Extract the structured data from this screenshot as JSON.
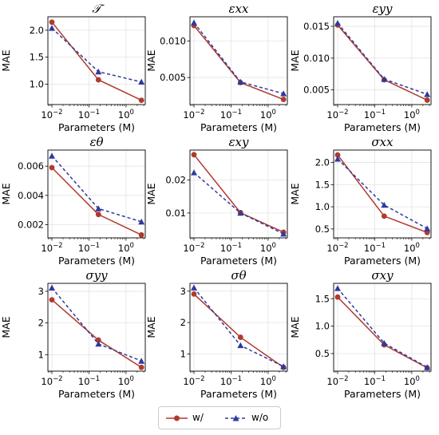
{
  "figure": {
    "x_axis_label": "Parameters (M)",
    "y_axis_label": "MAE",
    "colors": {
      "with": "#b03a2e",
      "without": "#2e3a9e"
    },
    "legend": [
      {
        "label": "w/",
        "color": "#b03a2e",
        "marker": "circle",
        "linestyle": "solid"
      },
      {
        "label": "w/o",
        "color": "#2e3a9e",
        "marker": "triangle",
        "linestyle": "dashed"
      }
    ]
  },
  "chart_data": [
    {
      "type": "line",
      "title": "𝒯",
      "xscale": "log",
      "x": [
        0.01,
        0.18,
        2.6
      ],
      "xtick_labels": [
        "10⁻²",
        "10⁻¹",
        "10⁰"
      ],
      "ylim": [
        0.62,
        2.25
      ],
      "yticks": [
        1.0,
        1.5,
        2.0
      ],
      "ytick_labels": [
        "1.0",
        "1.5",
        "2.0"
      ],
      "xlabel": "Parameters (M)",
      "ylabel": "MAE",
      "series": [
        {
          "name": "w/",
          "values": [
            2.15,
            1.08,
            0.7
          ]
        },
        {
          "name": "w/o",
          "values": [
            2.04,
            1.23,
            1.04
          ]
        }
      ]
    },
    {
      "type": "line",
      "title": "εxx",
      "xscale": "log",
      "x": [
        0.01,
        0.18,
        2.6
      ],
      "xtick_labels": [
        "10⁻²",
        "10⁻¹",
        "10⁰"
      ],
      "ylim": [
        0.0013,
        0.0133
      ],
      "yticks": [
        0.005,
        0.01
      ],
      "ytick_labels": [
        "0.005",
        "0.010"
      ],
      "xlabel": "Parameters (M)",
      "ylabel": "MAE",
      "series": [
        {
          "name": "w/",
          "values": [
            0.0121,
            0.0043,
            0.002
          ]
        },
        {
          "name": "w/o",
          "values": [
            0.0125,
            0.0044,
            0.0028
          ]
        }
      ]
    },
    {
      "type": "line",
      "title": "εyy",
      "xscale": "log",
      "x": [
        0.01,
        0.18,
        2.6
      ],
      "xtick_labels": [
        "10⁻²",
        "10⁻¹",
        "10⁰"
      ],
      "ylim": [
        0.0027,
        0.0165
      ],
      "yticks": [
        0.005,
        0.01,
        0.015
      ],
      "ytick_labels": [
        "0.005",
        "0.010",
        "0.015"
      ],
      "xlabel": "Parameters (M)",
      "ylabel": "MAE",
      "series": [
        {
          "name": "w/",
          "values": [
            0.0152,
            0.0066,
            0.0034
          ]
        },
        {
          "name": "w/o",
          "values": [
            0.0155,
            0.0067,
            0.0043
          ]
        }
      ]
    },
    {
      "type": "line",
      "title": "εθ",
      "xscale": "log",
      "x": [
        0.01,
        0.18,
        2.6
      ],
      "xtick_labels": [
        "10⁻²",
        "10⁻¹",
        "10⁰"
      ],
      "ylim": [
        0.0011,
        0.0071
      ],
      "yticks": [
        0.002,
        0.004,
        0.006
      ],
      "ytick_labels": [
        "0.002",
        "0.004",
        "0.006"
      ],
      "xlabel": "Parameters (M)",
      "ylabel": "MAE",
      "series": [
        {
          "name": "w/",
          "values": [
            0.0059,
            0.0027,
            0.0013
          ]
        },
        {
          "name": "w/o",
          "values": [
            0.0067,
            0.0031,
            0.0022
          ]
        }
      ]
    },
    {
      "type": "line",
      "title": "εxy",
      "xscale": "log",
      "x": [
        0.01,
        0.18,
        2.6
      ],
      "xtick_labels": [
        "10⁻²",
        "10⁻¹",
        "10⁰"
      ],
      "ylim": [
        0.0025,
        0.029
      ],
      "yticks": [
        0.01,
        0.02
      ],
      "ytick_labels": [
        "0.01",
        "0.02"
      ],
      "xlabel": "Parameters (M)",
      "ylabel": "MAE",
      "series": [
        {
          "name": "w/",
          "values": [
            0.0276,
            0.0101,
            0.0042
          ]
        },
        {
          "name": "w/o",
          "values": [
            0.0222,
            0.01,
            0.0037
          ]
        }
      ]
    },
    {
      "type": "line",
      "title": "σxx",
      "xscale": "log",
      "x": [
        0.01,
        0.18,
        2.6
      ],
      "xtick_labels": [
        "10⁻²",
        "10⁻¹",
        "10⁰"
      ],
      "ylim": [
        0.3,
        2.28
      ],
      "yticks": [
        0.5,
        1.0,
        1.5,
        2.0
      ],
      "ytick_labels": [
        "0.5",
        "1.0",
        "1.5",
        "2.0"
      ],
      "xlabel": "Parameters (M)",
      "ylabel": "MAE",
      "series": [
        {
          "name": "w/",
          "values": [
            2.17,
            0.79,
            0.42
          ]
        },
        {
          "name": "w/o",
          "values": [
            2.08,
            1.04,
            0.51
          ]
        }
      ]
    },
    {
      "type": "line",
      "title": "σyy",
      "xscale": "log",
      "x": [
        0.01,
        0.18,
        2.6
      ],
      "xtick_labels": [
        "10⁻²",
        "10⁻¹",
        "10⁰"
      ],
      "ylim": [
        0.48,
        3.25
      ],
      "yticks": [
        1,
        2,
        3
      ],
      "ytick_labels": [
        "1",
        "2",
        "3"
      ],
      "xlabel": "Parameters (M)",
      "ylabel": "MAE",
      "series": [
        {
          "name": "w/",
          "values": [
            2.73,
            1.46,
            0.6
          ]
        },
        {
          "name": "w/o",
          "values": [
            3.11,
            1.34,
            0.8
          ]
        }
      ]
    },
    {
      "type": "line",
      "title": "σθ",
      "xscale": "log",
      "x": [
        0.01,
        0.18,
        2.6
      ],
      "xtick_labels": [
        "10⁻²",
        "10⁻¹",
        "10⁰"
      ],
      "ylim": [
        0.45,
        3.25
      ],
      "yticks": [
        1,
        2,
        3
      ],
      "ytick_labels": [
        "1",
        "2",
        "3"
      ],
      "xlabel": "Parameters (M)",
      "ylabel": "MAE",
      "series": [
        {
          "name": "w/",
          "values": [
            2.91,
            1.53,
            0.57
          ]
        },
        {
          "name": "w/o",
          "values": [
            3.11,
            1.27,
            0.6
          ]
        }
      ]
    },
    {
      "type": "line",
      "title": "σxy",
      "xscale": "log",
      "x": [
        0.01,
        0.18,
        2.6
      ],
      "xtick_labels": [
        "10⁻²",
        "10⁻¹",
        "10⁰"
      ],
      "ylim": [
        0.18,
        1.78
      ],
      "yticks": [
        0.5,
        1.0,
        1.5
      ],
      "ytick_labels": [
        "0.5",
        "1.0",
        "1.5"
      ],
      "xlabel": "Parameters (M)",
      "ylabel": "MAE",
      "series": [
        {
          "name": "w/",
          "values": [
            1.53,
            0.66,
            0.24
          ]
        },
        {
          "name": "w/o",
          "values": [
            1.69,
            0.69,
            0.25
          ]
        }
      ]
    }
  ]
}
